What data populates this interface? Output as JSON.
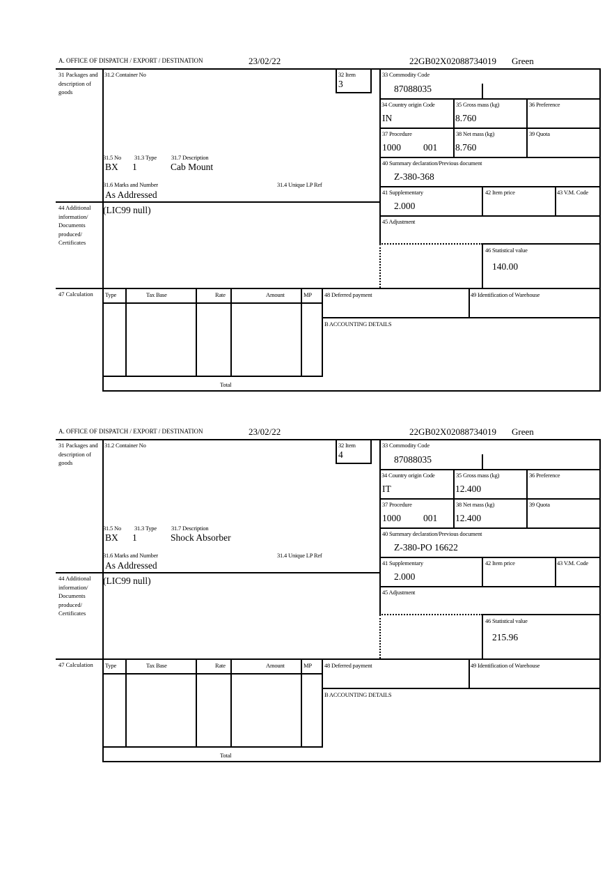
{
  "labels": {
    "office": "A.  OFFICE OF DISPATCH / EXPORT / DESTINATION",
    "packages": "31 Packages and description of goods",
    "container_no": "31.2 Container No",
    "item": "32 Item",
    "commodity_code": "33 Commodity Code",
    "country_origin": "34 Country origin Code",
    "gross_mass": "35 Gross mass (kg)",
    "preference": "36 Preference",
    "procedure": "37 Procedure",
    "net_mass": "38 Net mass (kg)",
    "quota": "39 Quota",
    "summary_declaration": "40 Summary declaration/Previous document",
    "supplementary": "41 Supplementary",
    "item_price": "42 Item price",
    "vm_code": "43 V.M. Code",
    "adjustment": "45 Adjustment",
    "statistical_value": "46 Statistical value",
    "no": "31.5 No",
    "type": "31.3 Type",
    "description": "31.7 Description",
    "marks": "31.6 Marks and Number",
    "unique_lp_ref": "31.4 Unique LP Ref",
    "additional_info": "44 Additional information/ Documents produced/ Certificates",
    "calculation": "47 Calculation",
    "calc_columns": [
      "Type",
      "Tax Base",
      "Rate",
      "Amount",
      "MP"
    ],
    "total": "Total",
    "deferred_payment": "48 Deferred payment",
    "warehouse": "49 Identification of Warehouse",
    "accounting": "B ACCOUNTING DETAILS"
  },
  "forms": [
    {
      "date": "23/02/22",
      "reference": "22GB02X02088734019",
      "status": "Green",
      "item": "3",
      "commodity_code": "87088035",
      "country_origin": "IN",
      "gross_mass": "8.760",
      "procedure": "1000",
      "procedure_additional": "001",
      "net_mass": "8.760",
      "summary_declaration": "Z-380-368",
      "supplementary": "2.000",
      "statistical_value": "140.00",
      "no": "BX",
      "type": "1",
      "description": "Cab Mount",
      "marks": "As Addressed",
      "additional_info": "(LIC99 null)"
    },
    {
      "date": "23/02/22",
      "reference": "22GB02X02088734019",
      "status": "Green",
      "item": "4",
      "commodity_code": "87088035",
      "country_origin": "IT",
      "gross_mass": "12.400",
      "procedure": "1000",
      "procedure_additional": "001",
      "net_mass": "12.400",
      "summary_declaration": "Z-380-PO 16622",
      "supplementary": "2.000",
      "statistical_value": "215.96",
      "no": "BX",
      "type": "1",
      "description": "Shock Absorber",
      "marks": "As Addressed",
      "additional_info": "(LIC99 null)"
    }
  ]
}
